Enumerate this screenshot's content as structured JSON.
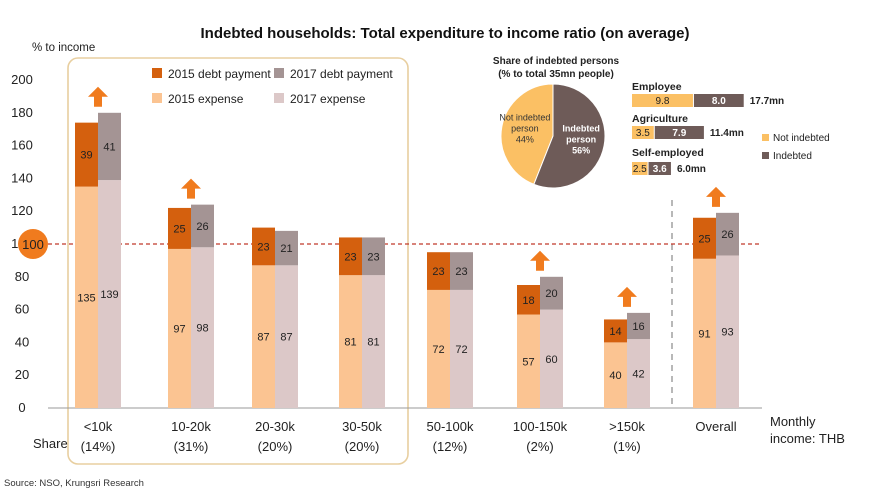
{
  "colors": {
    "debt2015": "#D4600E",
    "debt2017": "#A49494",
    "exp2015": "#FBC492",
    "exp2017": "#DCC8C8",
    "arrow": "#F07B1E",
    "refline": "#C0392B",
    "highlight_border": "#E8CFA0",
    "pie_not": "#FBC064",
    "pie_ind": "#6E5B58"
  },
  "texts": {
    "title": "Indebted households: Total expenditure to income ratio (on average)",
    "y_unit": "% to income",
    "x_unit_line1": "Monthly",
    "x_unit_line2": "income: THB",
    "share_label": "Share",
    "source": "Source: NSO, Krungsri Research"
  },
  "chart_data": {
    "type": "bar",
    "title": "Indebted households: Total expenditure to income ratio (on average)",
    "ylabel": "% to income",
    "xlabel": "Monthly income: THB",
    "ylim": [
      0,
      200
    ],
    "yticks": [
      0,
      20,
      40,
      60,
      80,
      100,
      120,
      140,
      160,
      180,
      200
    ],
    "reference_line": 100,
    "categories": [
      "<10k",
      "10-20k",
      "20-30k",
      "30-50k",
      "50-100k",
      "100-150k",
      ">150k",
      "Overall"
    ],
    "shares": [
      "(14%)",
      "(31%)",
      "(20%)",
      "(20%)",
      "(12%)",
      "(2%)",
      "(1%)",
      ""
    ],
    "series": [
      {
        "name": "2015 expense",
        "stack": "2015",
        "values": [
          135,
          97,
          87,
          81,
          72,
          57,
          40,
          91
        ]
      },
      {
        "name": "2015 debt payment",
        "stack": "2015",
        "values": [
          39,
          25,
          23,
          23,
          23,
          18,
          14,
          25
        ]
      },
      {
        "name": "2017 expense",
        "stack": "2017",
        "values": [
          139,
          98,
          87,
          81,
          72,
          60,
          42,
          93
        ]
      },
      {
        "name": "2017 debt payment",
        "stack": "2017",
        "values": [
          41,
          26,
          21,
          23,
          23,
          20,
          16,
          26
        ]
      }
    ],
    "arrows_on": [
      "<10k",
      "10-20k",
      "100-150k",
      ">150k",
      "Overall"
    ],
    "legend": [
      "2015 debt payment",
      "2017 debt payment",
      "2015 expense",
      "2017 expense"
    ],
    "pie": {
      "title_line1": "Share of indebted persons",
      "title_line2": "(% to total 35mn people)",
      "slices": [
        {
          "label_line1": "Not indebted",
          "label_line2": "person",
          "value": 44,
          "value_label": "44%"
        },
        {
          "label_line1": "Indebted",
          "label_line2": "person",
          "value": 56,
          "value_label": "56%"
        }
      ]
    },
    "occupations": [
      {
        "name": "Employee",
        "not_indebted": 9.8,
        "indebted": 8.0,
        "not_label": "9.8",
        "ind_label": "8.0",
        "total": "17.7mn"
      },
      {
        "name": "Agriculture",
        "not_indebted": 3.5,
        "indebted": 7.9,
        "not_label": "3.5",
        "ind_label": "7.9",
        "total": "11.4mn"
      },
      {
        "name": "Self-employed",
        "not_indebted": 2.5,
        "indebted": 3.6,
        "not_label": "2.5",
        "ind_label": "3.6",
        "total": "6.0mn"
      }
    ],
    "occupation_legend": [
      "Not indebted",
      "Indebted"
    ]
  }
}
